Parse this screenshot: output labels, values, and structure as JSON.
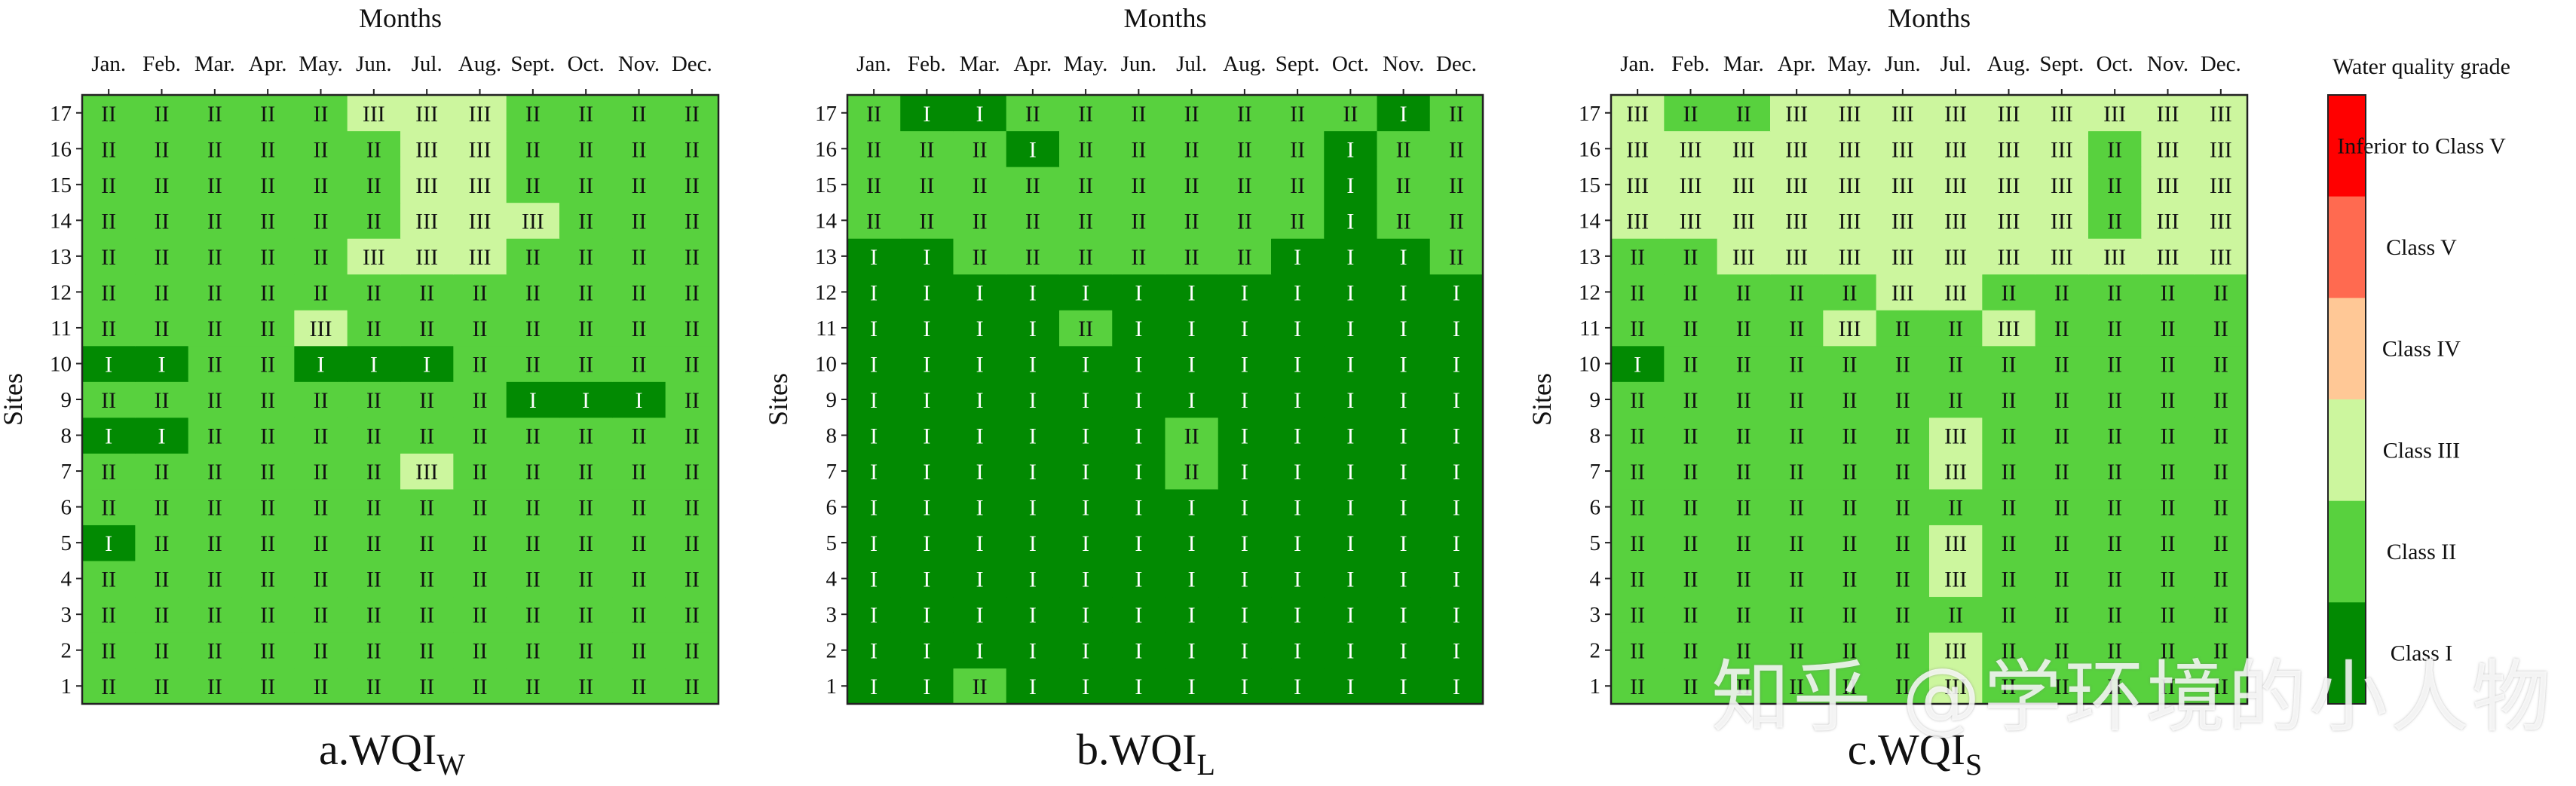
{
  "chart_data": [
    {
      "type": "heatmap",
      "title": "a.WQI",
      "title_subscript": "W",
      "xlabel": "Months",
      "ylabel": "Sites",
      "categories": [
        "Jan.",
        "Feb.",
        "Mar.",
        "Apr.",
        "May.",
        "Jun.",
        "Jul.",
        "Aug.",
        "Sept.",
        "Oct.",
        "Nov.",
        "Dec."
      ],
      "sites": [
        "1",
        "2",
        "3",
        "4",
        "5",
        "6",
        "7",
        "8",
        "9",
        "10",
        "11",
        "12",
        "13",
        "14",
        "15",
        "16",
        "17"
      ],
      "grades": [
        [
          "II",
          "II",
          "II",
          "II",
          "II",
          "II",
          "II",
          "II",
          "II",
          "II",
          "II",
          "II"
        ],
        [
          "II",
          "II",
          "II",
          "II",
          "II",
          "II",
          "II",
          "II",
          "II",
          "II",
          "II",
          "II"
        ],
        [
          "II",
          "II",
          "II",
          "II",
          "II",
          "II",
          "II",
          "II",
          "II",
          "II",
          "II",
          "II"
        ],
        [
          "II",
          "II",
          "II",
          "II",
          "II",
          "II",
          "II",
          "II",
          "II",
          "II",
          "II",
          "II"
        ],
        [
          "I",
          "II",
          "II",
          "II",
          "II",
          "II",
          "II",
          "II",
          "II",
          "II",
          "II",
          "II"
        ],
        [
          "II",
          "II",
          "II",
          "II",
          "II",
          "II",
          "II",
          "II",
          "II",
          "II",
          "II",
          "II"
        ],
        [
          "II",
          "II",
          "II",
          "II",
          "II",
          "II",
          "III",
          "II",
          "II",
          "II",
          "II",
          "II"
        ],
        [
          "I",
          "I",
          "II",
          "II",
          "II",
          "II",
          "II",
          "II",
          "II",
          "II",
          "II",
          "II"
        ],
        [
          "II",
          "II",
          "II",
          "II",
          "II",
          "II",
          "II",
          "II",
          "I",
          "I",
          "I",
          "II"
        ],
        [
          "I",
          "I",
          "II",
          "II",
          "I",
          "I",
          "I",
          "II",
          "II",
          "II",
          "II",
          "II"
        ],
        [
          "II",
          "II",
          "II",
          "II",
          "III",
          "II",
          "II",
          "II",
          "II",
          "II",
          "II",
          "II"
        ],
        [
          "II",
          "II",
          "II",
          "II",
          "II",
          "II",
          "II",
          "II",
          "II",
          "II",
          "II",
          "II"
        ],
        [
          "II",
          "II",
          "II",
          "II",
          "II",
          "III",
          "III",
          "III",
          "II",
          "II",
          "II",
          "II"
        ],
        [
          "II",
          "II",
          "II",
          "II",
          "II",
          "II",
          "III",
          "III",
          "III",
          "II",
          "II",
          "II"
        ],
        [
          "II",
          "II",
          "II",
          "II",
          "II",
          "II",
          "III",
          "III",
          "II",
          "II",
          "II",
          "II"
        ],
        [
          "II",
          "II",
          "II",
          "II",
          "II",
          "II",
          "III",
          "III",
          "II",
          "II",
          "II",
          "II"
        ],
        [
          "II",
          "II",
          "II",
          "II",
          "II",
          "III",
          "III",
          "III",
          "II",
          "II",
          "II",
          "II"
        ]
      ]
    },
    {
      "type": "heatmap",
      "title": "b.WQI",
      "title_subscript": "L",
      "xlabel": "Months",
      "ylabel": "Sites",
      "categories": [
        "Jan.",
        "Feb.",
        "Mar.",
        "Apr.",
        "May.",
        "Jun.",
        "Jul.",
        "Aug.",
        "Sept.",
        "Oct.",
        "Nov.",
        "Dec."
      ],
      "sites": [
        "1",
        "2",
        "3",
        "4",
        "5",
        "6",
        "7",
        "8",
        "9",
        "10",
        "11",
        "12",
        "13",
        "14",
        "15",
        "16",
        "17"
      ],
      "grades": [
        [
          "I",
          "I",
          "II",
          "I",
          "I",
          "I",
          "I",
          "I",
          "I",
          "I",
          "I",
          "I"
        ],
        [
          "I",
          "I",
          "I",
          "I",
          "I",
          "I",
          "I",
          "I",
          "I",
          "I",
          "I",
          "I"
        ],
        [
          "I",
          "I",
          "I",
          "I",
          "I",
          "I",
          "I",
          "I",
          "I",
          "I",
          "I",
          "I"
        ],
        [
          "I",
          "I",
          "I",
          "I",
          "I",
          "I",
          "I",
          "I",
          "I",
          "I",
          "I",
          "I"
        ],
        [
          "I",
          "I",
          "I",
          "I",
          "I",
          "I",
          "I",
          "I",
          "I",
          "I",
          "I",
          "I"
        ],
        [
          "I",
          "I",
          "I",
          "I",
          "I",
          "I",
          "I",
          "I",
          "I",
          "I",
          "I",
          "I"
        ],
        [
          "I",
          "I",
          "I",
          "I",
          "I",
          "I",
          "II",
          "I",
          "I",
          "I",
          "I",
          "I"
        ],
        [
          "I",
          "I",
          "I",
          "I",
          "I",
          "I",
          "II",
          "I",
          "I",
          "I",
          "I",
          "I"
        ],
        [
          "I",
          "I",
          "I",
          "I",
          "I",
          "I",
          "I",
          "I",
          "I",
          "I",
          "I",
          "I"
        ],
        [
          "I",
          "I",
          "I",
          "I",
          "I",
          "I",
          "I",
          "I",
          "I",
          "I",
          "I",
          "I"
        ],
        [
          "I",
          "I",
          "I",
          "I",
          "II",
          "I",
          "I",
          "I",
          "I",
          "I",
          "I",
          "I"
        ],
        [
          "I",
          "I",
          "I",
          "I",
          "I",
          "I",
          "I",
          "I",
          "I",
          "I",
          "I",
          "I"
        ],
        [
          "I",
          "I",
          "II",
          "II",
          "II",
          "II",
          "II",
          "II",
          "I",
          "I",
          "I",
          "II"
        ],
        [
          "II",
          "II",
          "II",
          "II",
          "II",
          "II",
          "II",
          "II",
          "II",
          "I",
          "II",
          "II"
        ],
        [
          "II",
          "II",
          "II",
          "II",
          "II",
          "II",
          "II",
          "II",
          "II",
          "I",
          "II",
          "II"
        ],
        [
          "II",
          "II",
          "II",
          "I",
          "II",
          "II",
          "II",
          "II",
          "II",
          "I",
          "II",
          "II"
        ],
        [
          "II",
          "I",
          "I",
          "II",
          "II",
          "II",
          "II",
          "II",
          "II",
          "II",
          "I",
          "II"
        ]
      ]
    },
    {
      "type": "heatmap",
      "title": "c.WQI",
      "title_subscript": "S",
      "xlabel": "Months",
      "ylabel": "Sites",
      "categories": [
        "Jan.",
        "Feb.",
        "Mar.",
        "Apr.",
        "May.",
        "Jun.",
        "Jul.",
        "Aug.",
        "Sept.",
        "Oct.",
        "Nov.",
        "Dec."
      ],
      "sites": [
        "1",
        "2",
        "3",
        "4",
        "5",
        "6",
        "7",
        "8",
        "9",
        "10",
        "11",
        "12",
        "13",
        "14",
        "15",
        "16",
        "17"
      ],
      "grades": [
        [
          "II",
          "II",
          "II",
          "II",
          "II",
          "II",
          "III",
          "II",
          "II",
          "II",
          "II",
          "II"
        ],
        [
          "II",
          "II",
          "II",
          "II",
          "II",
          "II",
          "III",
          "II",
          "II",
          "II",
          "II",
          "II"
        ],
        [
          "II",
          "II",
          "II",
          "II",
          "II",
          "II",
          "II",
          "II",
          "II",
          "II",
          "II",
          "II"
        ],
        [
          "II",
          "II",
          "II",
          "II",
          "II",
          "II",
          "III",
          "II",
          "II",
          "II",
          "II",
          "II"
        ],
        [
          "II",
          "II",
          "II",
          "II",
          "II",
          "II",
          "III",
          "II",
          "II",
          "II",
          "II",
          "II"
        ],
        [
          "II",
          "II",
          "II",
          "II",
          "II",
          "II",
          "II",
          "II",
          "II",
          "II",
          "II",
          "II"
        ],
        [
          "II",
          "II",
          "II",
          "II",
          "II",
          "II",
          "III",
          "II",
          "II",
          "II",
          "II",
          "II"
        ],
        [
          "II",
          "II",
          "II",
          "II",
          "II",
          "II",
          "III",
          "II",
          "II",
          "II",
          "II",
          "II"
        ],
        [
          "II",
          "II",
          "II",
          "II",
          "II",
          "II",
          "II",
          "II",
          "II",
          "II",
          "II",
          "II"
        ],
        [
          "I",
          "II",
          "II",
          "II",
          "II",
          "II",
          "II",
          "II",
          "II",
          "II",
          "II",
          "II"
        ],
        [
          "II",
          "II",
          "II",
          "II",
          "III",
          "II",
          "II",
          "III",
          "II",
          "II",
          "II",
          "II"
        ],
        [
          "II",
          "II",
          "II",
          "II",
          "II",
          "III",
          "III",
          "II",
          "II",
          "II",
          "II",
          "II"
        ],
        [
          "II",
          "II",
          "III",
          "III",
          "III",
          "III",
          "III",
          "III",
          "III",
          "III",
          "III",
          "III"
        ],
        [
          "III",
          "III",
          "III",
          "III",
          "III",
          "III",
          "III",
          "III",
          "III",
          "II",
          "III",
          "III"
        ],
        [
          "III",
          "III",
          "III",
          "III",
          "III",
          "III",
          "III",
          "III",
          "III",
          "II",
          "III",
          "III"
        ],
        [
          "III",
          "III",
          "III",
          "III",
          "III",
          "III",
          "III",
          "III",
          "III",
          "II",
          "III",
          "III"
        ],
        [
          "III",
          "II",
          "II",
          "III",
          "III",
          "III",
          "III",
          "III",
          "III",
          "III",
          "III",
          "III"
        ]
      ]
    }
  ],
  "legend": {
    "title": "Water quality grade",
    "items": [
      {
        "label": "Inferior to Class V",
        "color": "#ff0000"
      },
      {
        "label": "Class V",
        "color": "#ff6a50"
      },
      {
        "label": "Class IV",
        "color": "#ffc896"
      },
      {
        "label": "Class III",
        "color": "#ccf69e"
      },
      {
        "label": "Class II",
        "color": "#58d13e"
      },
      {
        "label": "Class I",
        "color": "#028a02"
      }
    ]
  },
  "grade_colors": {
    "I": "#028a02",
    "II": "#58d13e",
    "III": "#ccf69e",
    "IV": "#ffc896",
    "V": "#ff6a50"
  },
  "watermark": "知乎 @学环境的小人物"
}
